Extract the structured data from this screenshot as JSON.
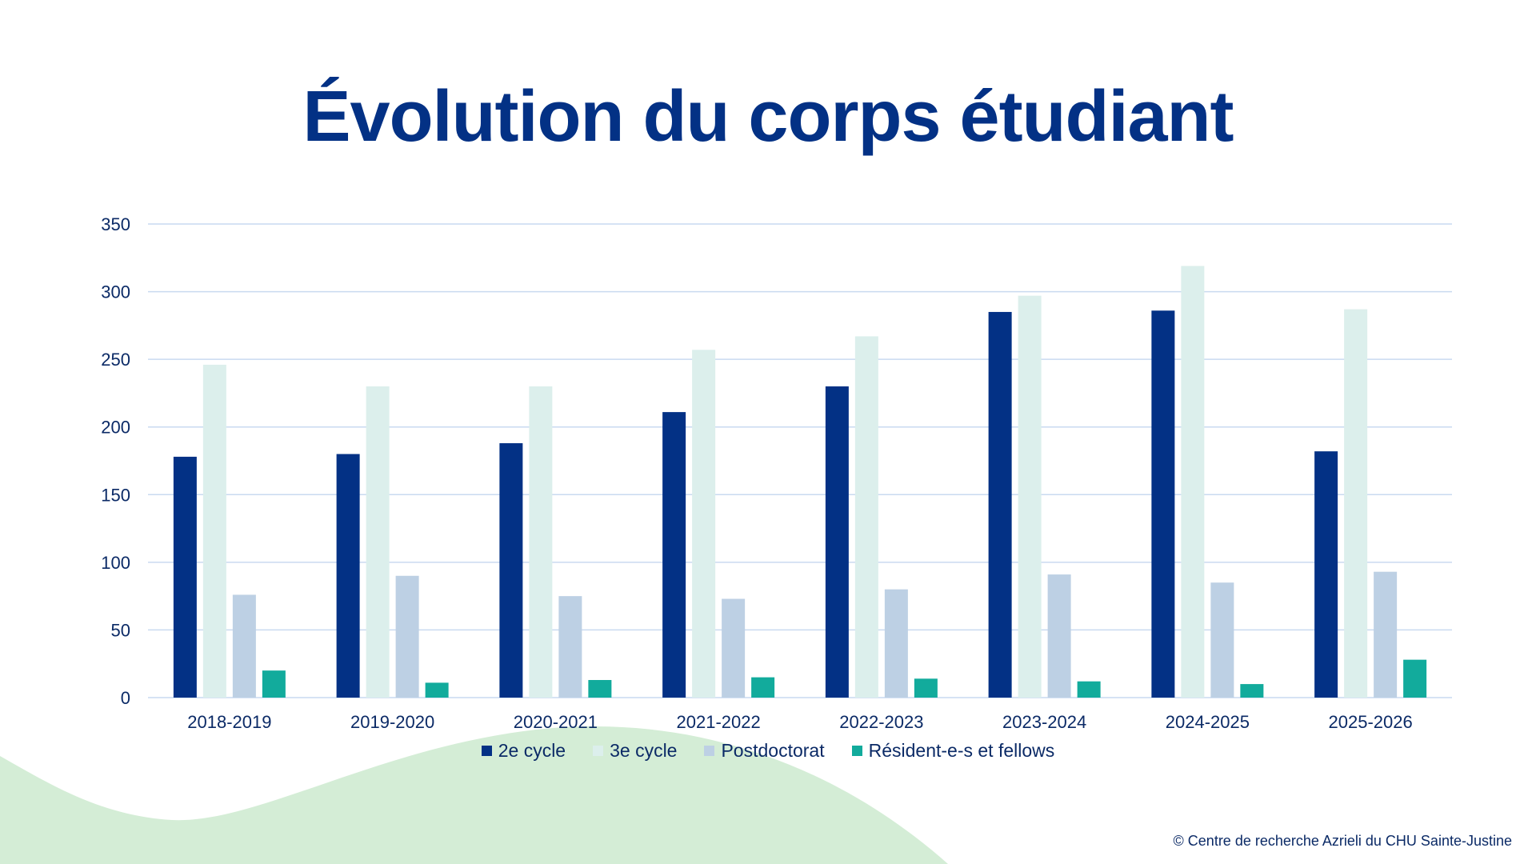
{
  "slide": {
    "title": "Évolution du corps étudiant",
    "footer": "© Centre de recherche Azrieli du CHU Sainte-Justine"
  },
  "colors": {
    "background_wave": "#d4edd6",
    "title": "#033185",
    "gridline": "#c9daf0"
  },
  "chart_data": {
    "type": "bar",
    "title": "",
    "xlabel": "",
    "ylabel": "",
    "ylim": [
      0,
      350
    ],
    "yticks": [
      0,
      50,
      100,
      150,
      200,
      250,
      300,
      350
    ],
    "grid": true,
    "legend_position": "bottom",
    "categories": [
      "2018-2019",
      "2019-2020",
      "2020-2021",
      "2021-2022",
      "2022-2023",
      "2023-2024",
      "2024-2025",
      "2025-2026"
    ],
    "series": [
      {
        "name": "2e cycle",
        "color": "#033185",
        "values": [
          178,
          180,
          188,
          211,
          230,
          285,
          286,
          182
        ]
      },
      {
        "name": "3e cycle",
        "color": "#dcefec",
        "values": [
          246,
          230,
          230,
          257,
          267,
          297,
          319,
          287
        ]
      },
      {
        "name": "Postdoctorat",
        "color": "#bdd0e4",
        "values": [
          76,
          90,
          75,
          73,
          80,
          91,
          85,
          93
        ]
      },
      {
        "name": "Résident-e-s et fellows",
        "color": "#12ab9c",
        "values": [
          20,
          11,
          13,
          15,
          14,
          12,
          10,
          28
        ]
      }
    ]
  }
}
